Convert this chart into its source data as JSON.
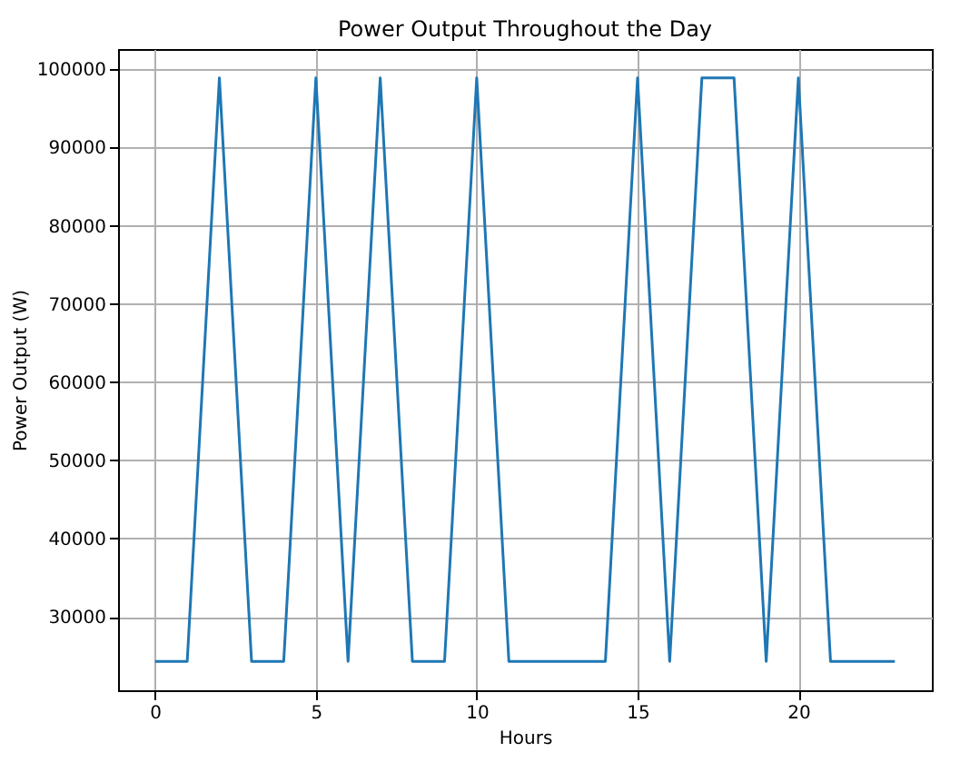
{
  "chart_data": {
    "type": "line",
    "title": "Power Output Throughout the Day",
    "xlabel": "Hours",
    "ylabel": "Power Output (W)",
    "x": [
      0,
      1,
      2,
      3,
      4,
      5,
      6,
      7,
      8,
      9,
      10,
      11,
      12,
      13,
      14,
      15,
      16,
      17,
      18,
      19,
      20,
      21,
      22,
      23
    ],
    "series": [
      {
        "color": "#1f77b4",
        "values": [
          24300,
          24300,
          98900,
          24300,
          24300,
          98900,
          24300,
          98900,
          24300,
          24300,
          98900,
          24300,
          24300,
          24300,
          24300,
          98900,
          24300,
          98900,
          98900,
          24300,
          98900,
          24300,
          24300,
          24300
        ]
      }
    ],
    "xlim": [
      -1.15,
      24.15
    ],
    "xticks": [
      0,
      5,
      10,
      15,
      20
    ],
    "ylim": [
      20600,
      102600
    ],
    "yticks": [
      30000,
      40000,
      50000,
      60000,
      70000,
      80000,
      90000,
      100000
    ],
    "grid": true,
    "marker": "none",
    "line_style": "solid",
    "legend": false
  }
}
